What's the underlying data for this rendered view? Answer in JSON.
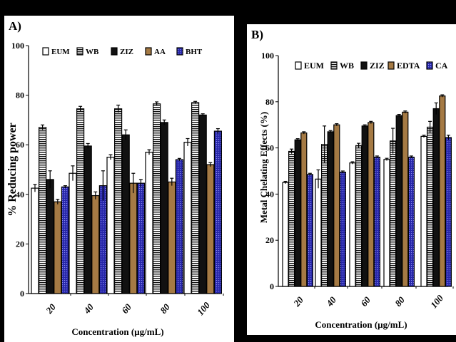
{
  "colors": {
    "EUM": "#ffffff",
    "WB": "#ffffff",
    "ZIZ": "#111111",
    "AA": "#a57a44",
    "EDTA": "#a57a44",
    "BHT": "#2626a8",
    "CA": "#2626a8",
    "background": "#000000",
    "panel": "#ffffff"
  },
  "chart_data": [
    {
      "panel_label": "A)",
      "type": "bar",
      "title": "",
      "xlabel": "Concentration (µg/mL)",
      "ylabel": "% Reducing power",
      "categories": [
        "20",
        "40",
        "60",
        "80",
        "100"
      ],
      "ylim": [
        0,
        100
      ],
      "yticks": [
        "0",
        "20",
        "40",
        "60",
        "80",
        "100"
      ],
      "grid": false,
      "legend_position": "top",
      "series": [
        {
          "name": "EUM",
          "pattern": "outline",
          "values": [
            42.5,
            48.5,
            55,
            57,
            61
          ],
          "errors": [
            1.5,
            3,
            1,
            1,
            1.5
          ]
        },
        {
          "name": "WB",
          "pattern": "stripe",
          "values": [
            67,
            74.5,
            74.5,
            76.5,
            77
          ],
          "errors": [
            1,
            1,
            1.5,
            0.8,
            0.5
          ]
        },
        {
          "name": "ZIZ",
          "pattern": "solid",
          "values": [
            46,
            59.5,
            64,
            69,
            72
          ],
          "errors": [
            3.5,
            1,
            2,
            1,
            0.5
          ]
        },
        {
          "name": "AA",
          "pattern": "brown",
          "values": [
            37,
            39.5,
            44.5,
            45,
            52
          ],
          "errors": [
            1,
            1.5,
            4,
            1.5,
            0.8
          ]
        },
        {
          "name": "BHT",
          "pattern": "blue",
          "values": [
            43,
            43.5,
            44.5,
            54,
            65.5
          ],
          "errors": [
            0.5,
            6,
            1.5,
            0.5,
            1
          ]
        }
      ]
    },
    {
      "panel_label": "B)",
      "type": "bar",
      "title": "",
      "xlabel": "Concentration (µg/mL)",
      "ylabel": "Metal Chelating Effects (%)",
      "categories": [
        "20",
        "40",
        "60",
        "80",
        "100"
      ],
      "ylim": [
        0,
        100
      ],
      "yticks": [
        "0",
        "20",
        "40",
        "60",
        "80",
        "100"
      ],
      "grid": false,
      "legend_position": "top",
      "series": [
        {
          "name": "EUM",
          "pattern": "outline",
          "values": [
            45,
            46.5,
            53.5,
            55,
            65
          ],
          "errors": [
            0.5,
            4,
            0.5,
            0.5,
            0.5
          ]
        },
        {
          "name": "WB",
          "pattern": "stripe",
          "values": [
            58.5,
            61.5,
            61,
            63,
            69
          ],
          "errors": [
            1,
            8,
            1,
            5.5,
            2.5
          ]
        },
        {
          "name": "ZIZ",
          "pattern": "solid",
          "values": [
            63.5,
            67,
            69.5,
            74,
            77
          ],
          "errors": [
            0.5,
            0.5,
            0.5,
            0.5,
            2.5
          ]
        },
        {
          "name": "EDTA",
          "pattern": "brown",
          "values": [
            66.5,
            70,
            71,
            75.5,
            82.5
          ],
          "errors": [
            0.5,
            0.5,
            0.5,
            0.5,
            0.5
          ]
        },
        {
          "name": "CA",
          "pattern": "blue",
          "values": [
            48.5,
            49.5,
            56,
            56,
            64.5
          ],
          "errors": [
            0.5,
            0.5,
            0.5,
            0.5,
            1
          ]
        }
      ]
    }
  ]
}
